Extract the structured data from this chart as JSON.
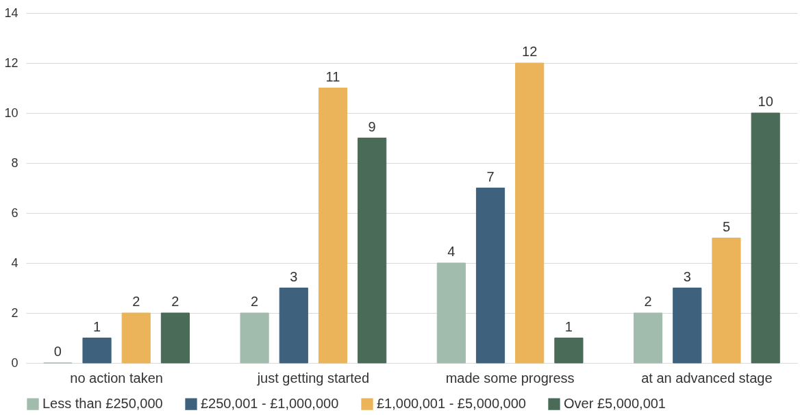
{
  "chart_data": {
    "type": "bar",
    "categories": [
      "no action taken",
      "just getting started",
      "made some progress",
      "at an advanced stage"
    ],
    "series": [
      {
        "name": "Less than £250,000",
        "color": "#a1bcad",
        "values": [
          0,
          2,
          4,
          2
        ]
      },
      {
        "name": "£250,001 - £1,000,000",
        "color": "#3e627d",
        "values": [
          1,
          3,
          7,
          3
        ]
      },
      {
        "name": "£1,000,001 - £5,000,000",
        "color": "#ebb45a",
        "values": [
          2,
          11,
          12,
          5
        ]
      },
      {
        "name": "Over £5,000,001",
        "color": "#4a6b57",
        "values": [
          2,
          9,
          1,
          10
        ]
      }
    ],
    "ylim": [
      0,
      14
    ],
    "yticks": [
      0,
      2,
      4,
      6,
      8,
      10,
      12,
      14
    ],
    "grid": "y",
    "legend": "bottom",
    "data_labels": true
  }
}
